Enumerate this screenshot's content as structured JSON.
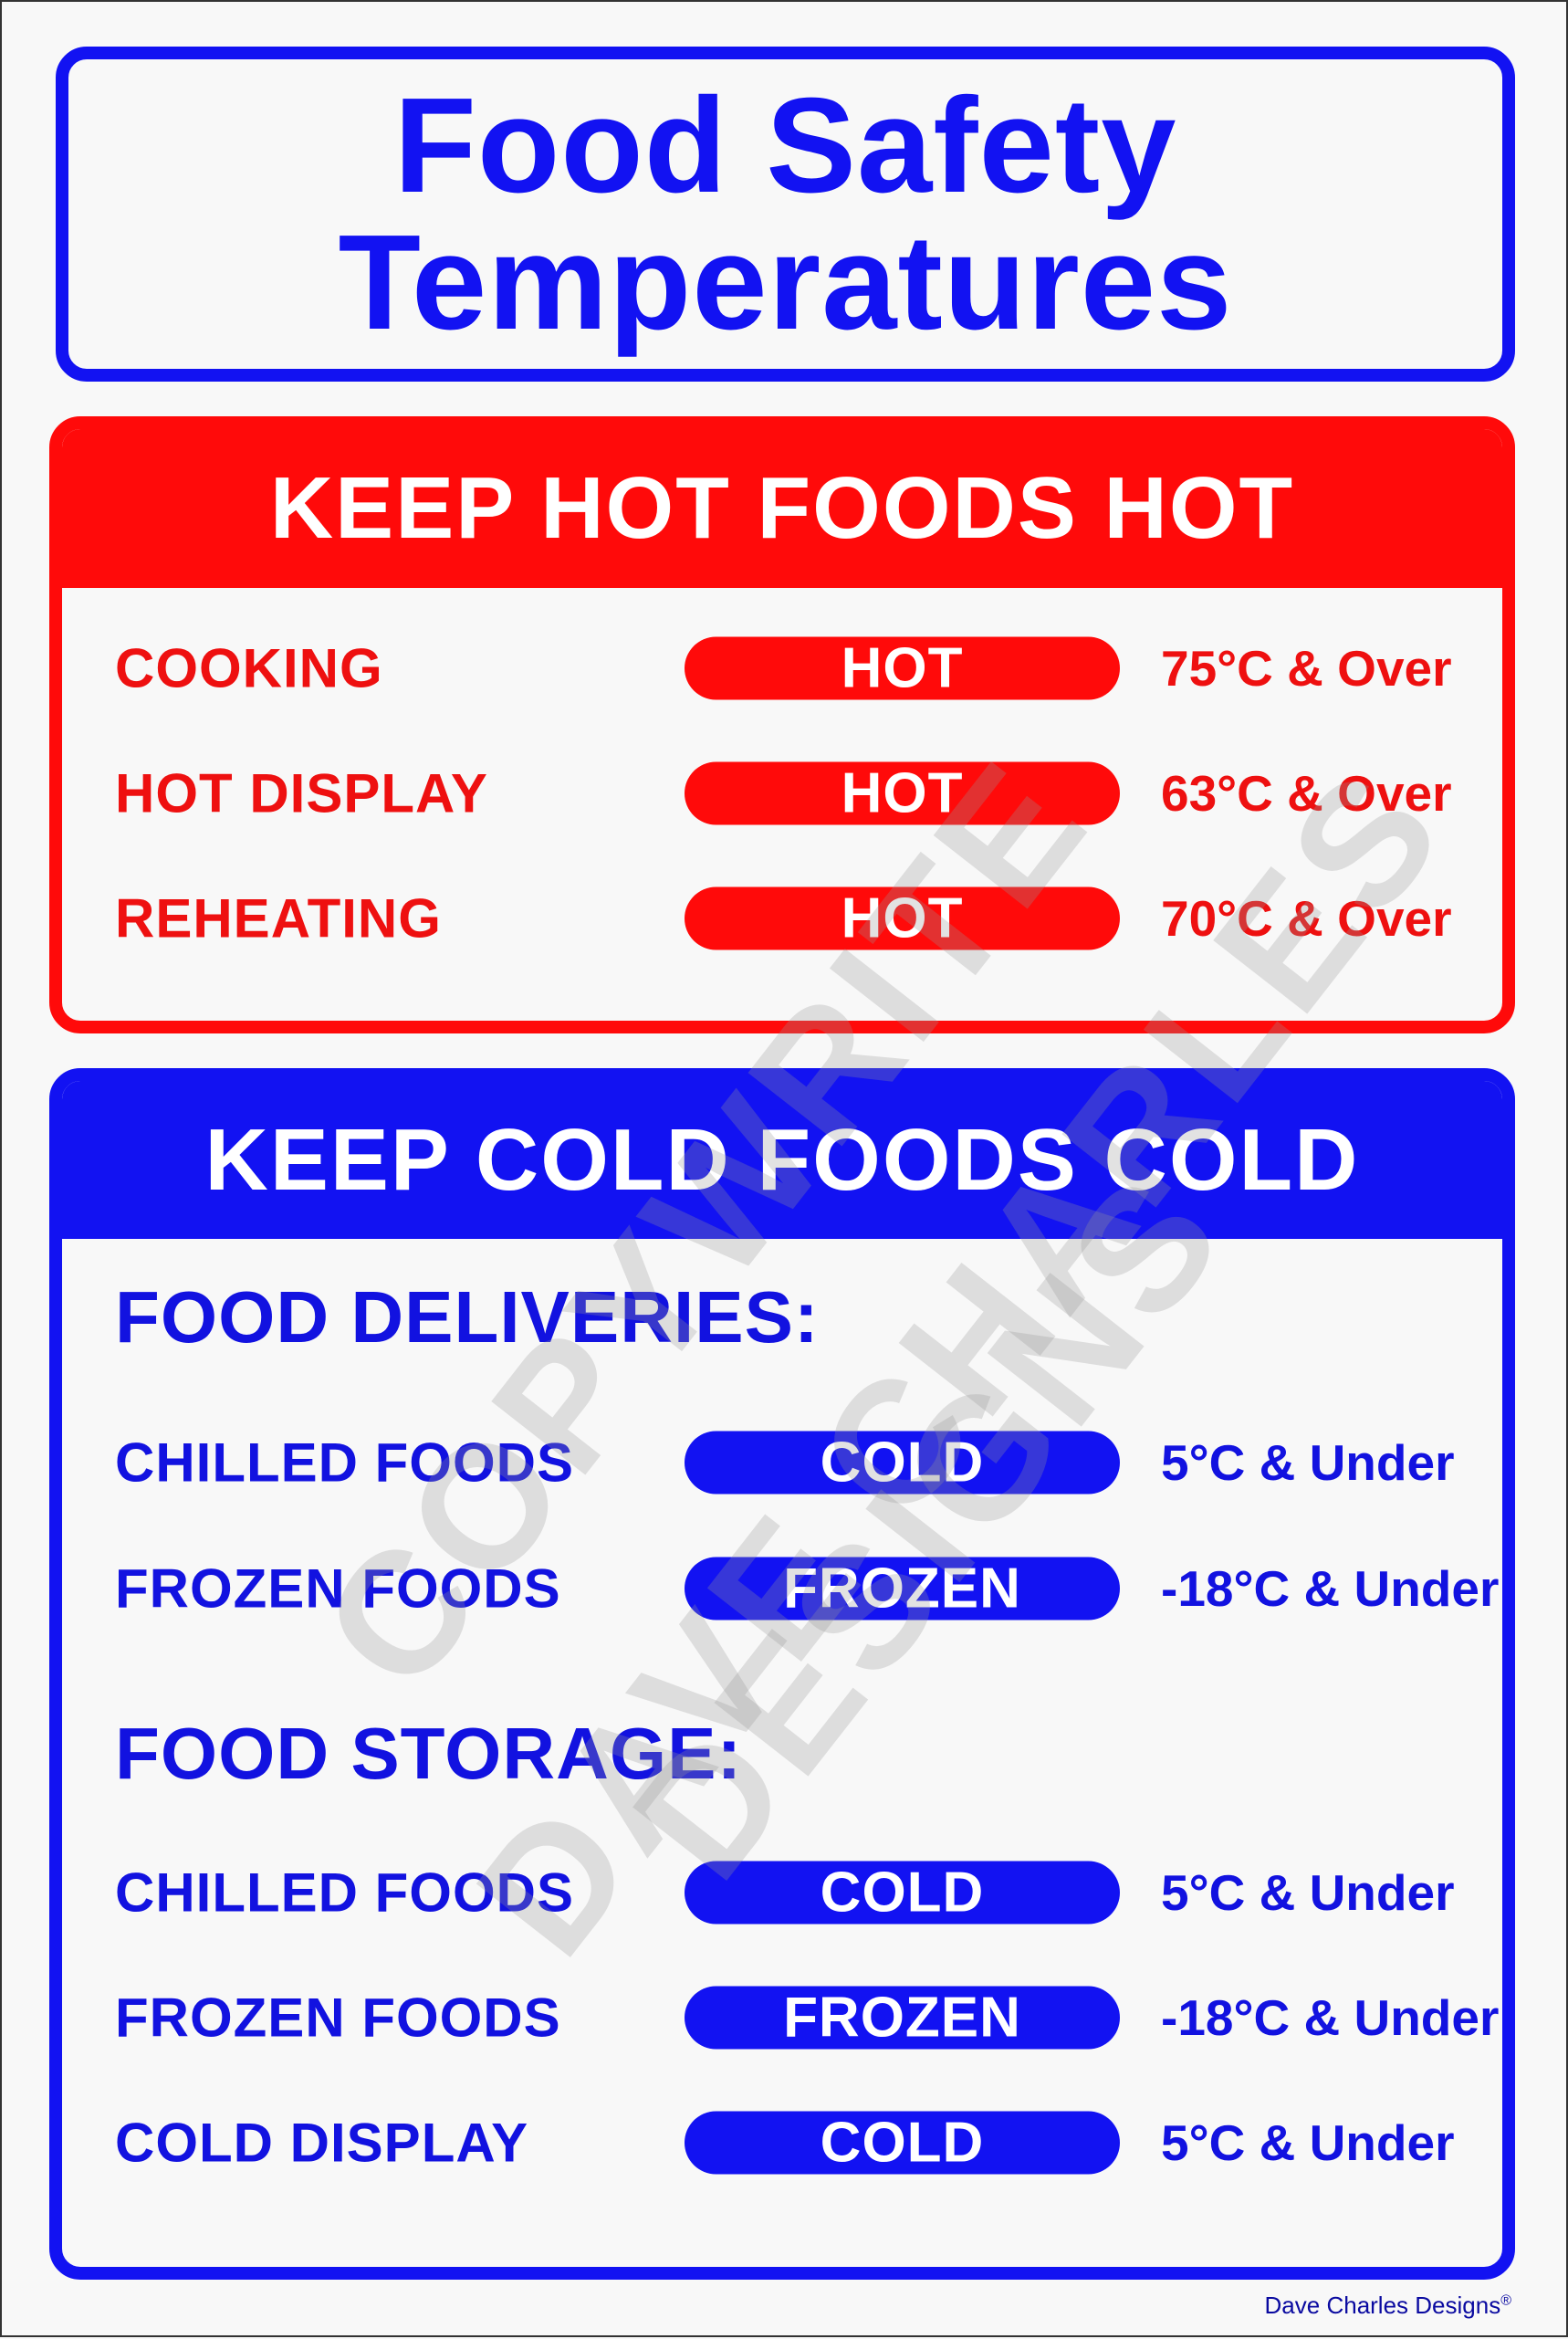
{
  "title": {
    "line1": "Food Safety",
    "line2": "Temperatures"
  },
  "hot": {
    "header": "KEEP HOT FOODS HOT",
    "rows": [
      {
        "label": "COOKING",
        "badge": "HOT",
        "temp": "75°C & Over"
      },
      {
        "label": "HOT DISPLAY",
        "badge": "HOT",
        "temp": "63°C & Over"
      },
      {
        "label": "REHEATING",
        "badge": "HOT",
        "temp": "70°C & Over"
      }
    ]
  },
  "cold": {
    "header": "KEEP COLD FOODS COLD",
    "deliveries": {
      "heading": "FOOD DELIVERIES:",
      "rows": [
        {
          "label": "CHILLED FOODS",
          "badge": "COLD",
          "temp": "5°C & Under"
        },
        {
          "label": "FROZEN FOODS",
          "badge": "FROZEN",
          "temp": "-18°C & Under"
        }
      ]
    },
    "storage": {
      "heading": "FOOD STORAGE:",
      "rows": [
        {
          "label": "CHILLED FOODS",
          "badge": "COLD",
          "temp": "5°C & Under"
        },
        {
          "label": "FROZEN FOODS",
          "badge": "FROZEN",
          "temp": "-18°C & Under"
        },
        {
          "label": "COLD DISPLAY",
          "badge": "COLD",
          "temp": "5°C & Under"
        }
      ]
    }
  },
  "watermark": {
    "line1": "COPYWRITE",
    "line2": "DAVE CHARLES",
    "line3": "DESIGNS"
  },
  "footer": {
    "brand": "Dave Charles Designs",
    "mark": "®"
  },
  "colors": {
    "blue": "#1212f2",
    "red": "#ff0a0a",
    "background": "#f8f8f8"
  }
}
